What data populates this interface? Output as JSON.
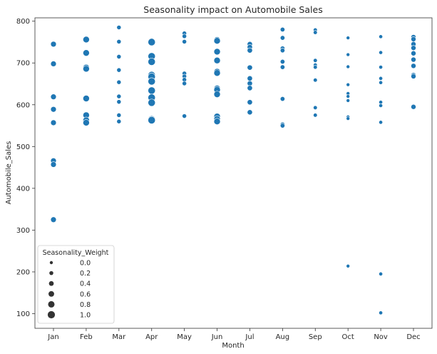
{
  "chart_data": {
    "type": "scatter",
    "title": "Seasonality impact on Automobile Sales",
    "xlabel": "Month",
    "ylabel": "Automobile_Sales",
    "categories": [
      "Jan",
      "Feb",
      "Mar",
      "Apr",
      "May",
      "Jun",
      "Jul",
      "Aug",
      "Sep",
      "Oct",
      "Nov",
      "Dec"
    ],
    "ylim": [
      65,
      808
    ],
    "yticks": [
      100,
      200,
      300,
      400,
      500,
      600,
      700,
      800
    ],
    "grid": false,
    "color": "#1f77b4",
    "legend": {
      "title": "Seasonality_Weight",
      "placement": "lower-left",
      "entries": [
        {
          "label": "0.0",
          "weight": 0.0
        },
        {
          "label": "0.2",
          "weight": 0.2
        },
        {
          "label": "0.4",
          "weight": 0.4
        },
        {
          "label": "0.6",
          "weight": 0.6
        },
        {
          "label": "0.8",
          "weight": 0.8
        },
        {
          "label": "1.0",
          "weight": 1.0
        }
      ]
    },
    "points": [
      {
        "x": "Jan",
        "y": 745,
        "weight": 0.6
      },
      {
        "x": "Jan",
        "y": 698,
        "weight": 0.6
      },
      {
        "x": "Jan",
        "y": 619,
        "weight": 0.6
      },
      {
        "x": "Jan",
        "y": 589,
        "weight": 0.6
      },
      {
        "x": "Jan",
        "y": 557,
        "weight": 0.6
      },
      {
        "x": "Jan",
        "y": 466,
        "weight": 0.6
      },
      {
        "x": "Jan",
        "y": 457,
        "weight": 0.6
      },
      {
        "x": "Jan",
        "y": 325,
        "weight": 0.6
      },
      {
        "x": "Feb",
        "y": 756,
        "weight": 0.8
      },
      {
        "x": "Feb",
        "y": 724,
        "weight": 0.8
      },
      {
        "x": "Feb",
        "y": 689,
        "weight": 0.8
      },
      {
        "x": "Feb",
        "y": 686,
        "weight": 0.8
      },
      {
        "x": "Feb",
        "y": 615,
        "weight": 0.8
      },
      {
        "x": "Feb",
        "y": 575,
        "weight": 0.8
      },
      {
        "x": "Feb",
        "y": 563,
        "weight": 0.8
      },
      {
        "x": "Feb",
        "y": 557,
        "weight": 0.8
      },
      {
        "x": "Mar",
        "y": 785,
        "weight": 0.3
      },
      {
        "x": "Mar",
        "y": 751,
        "weight": 0.3
      },
      {
        "x": "Mar",
        "y": 715,
        "weight": 0.3
      },
      {
        "x": "Mar",
        "y": 683,
        "weight": 0.3
      },
      {
        "x": "Mar",
        "y": 654,
        "weight": 0.3
      },
      {
        "x": "Mar",
        "y": 620,
        "weight": 0.3
      },
      {
        "x": "Mar",
        "y": 607,
        "weight": 0.3
      },
      {
        "x": "Mar",
        "y": 575,
        "weight": 0.3
      },
      {
        "x": "Mar",
        "y": 560,
        "weight": 0.3
      },
      {
        "x": "Apr",
        "y": 751,
        "weight": 1.0
      },
      {
        "x": "Apr",
        "y": 750,
        "weight": 1.0
      },
      {
        "x": "Apr",
        "y": 716,
        "weight": 1.0
      },
      {
        "x": "Apr",
        "y": 703,
        "weight": 1.0
      },
      {
        "x": "Apr",
        "y": 671,
        "weight": 1.0
      },
      {
        "x": "Apr",
        "y": 667,
        "weight": 1.0
      },
      {
        "x": "Apr",
        "y": 656,
        "weight": 1.0
      },
      {
        "x": "Apr",
        "y": 634,
        "weight": 1.0
      },
      {
        "x": "Apr",
        "y": 617,
        "weight": 1.0
      },
      {
        "x": "Apr",
        "y": 605,
        "weight": 1.0
      },
      {
        "x": "Apr",
        "y": 565,
        "weight": 1.0
      },
      {
        "x": "Apr",
        "y": 563,
        "weight": 1.0
      },
      {
        "x": "May",
        "y": 771,
        "weight": 0.3
      },
      {
        "x": "May",
        "y": 764,
        "weight": 0.3
      },
      {
        "x": "May",
        "y": 751,
        "weight": 0.3
      },
      {
        "x": "May",
        "y": 675,
        "weight": 0.3
      },
      {
        "x": "May",
        "y": 668,
        "weight": 0.3
      },
      {
        "x": "May",
        "y": 660,
        "weight": 0.3
      },
      {
        "x": "May",
        "y": 651,
        "weight": 0.3
      },
      {
        "x": "May",
        "y": 573,
        "weight": 0.3
      },
      {
        "x": "Jun",
        "y": 755,
        "weight": 0.8
      },
      {
        "x": "Jun",
        "y": 753,
        "weight": 0.8
      },
      {
        "x": "Jun",
        "y": 727,
        "weight": 0.8
      },
      {
        "x": "Jun",
        "y": 706,
        "weight": 0.8
      },
      {
        "x": "Jun",
        "y": 679,
        "weight": 0.8
      },
      {
        "x": "Jun",
        "y": 676,
        "weight": 0.8
      },
      {
        "x": "Jun",
        "y": 639,
        "weight": 0.8
      },
      {
        "x": "Jun",
        "y": 636,
        "weight": 0.8
      },
      {
        "x": "Jun",
        "y": 625,
        "weight": 0.8
      },
      {
        "x": "Jun",
        "y": 572,
        "weight": 0.8
      },
      {
        "x": "Jun",
        "y": 566,
        "weight": 0.8
      },
      {
        "x": "Jun",
        "y": 560,
        "weight": 0.8
      },
      {
        "x": "Jul",
        "y": 745,
        "weight": 0.5
      },
      {
        "x": "Jul",
        "y": 738,
        "weight": 0.5
      },
      {
        "x": "Jul",
        "y": 730,
        "weight": 0.5
      },
      {
        "x": "Jul",
        "y": 689,
        "weight": 0.5
      },
      {
        "x": "Jul",
        "y": 663,
        "weight": 0.5
      },
      {
        "x": "Jul",
        "y": 651,
        "weight": 0.5
      },
      {
        "x": "Jul",
        "y": 640,
        "weight": 0.5
      },
      {
        "x": "Jul",
        "y": 606,
        "weight": 0.5
      },
      {
        "x": "Jul",
        "y": 582,
        "weight": 0.5
      },
      {
        "x": "Aug",
        "y": 780,
        "weight": 0.35
      },
      {
        "x": "Aug",
        "y": 760,
        "weight": 0.35
      },
      {
        "x": "Aug",
        "y": 735,
        "weight": 0.35
      },
      {
        "x": "Aug",
        "y": 730,
        "weight": 0.35
      },
      {
        "x": "Aug",
        "y": 703,
        "weight": 0.35
      },
      {
        "x": "Aug",
        "y": 690,
        "weight": 0.35
      },
      {
        "x": "Aug",
        "y": 614,
        "weight": 0.35
      },
      {
        "x": "Aug",
        "y": 553,
        "weight": 0.35
      },
      {
        "x": "Aug",
        "y": 550,
        "weight": 0.35
      },
      {
        "x": "Sep",
        "y": 779,
        "weight": 0.2
      },
      {
        "x": "Sep",
        "y": 773,
        "weight": 0.2
      },
      {
        "x": "Sep",
        "y": 706,
        "weight": 0.2
      },
      {
        "x": "Sep",
        "y": 695,
        "weight": 0.2
      },
      {
        "x": "Sep",
        "y": 690,
        "weight": 0.2
      },
      {
        "x": "Sep",
        "y": 659,
        "weight": 0.2
      },
      {
        "x": "Sep",
        "y": 593,
        "weight": 0.2
      },
      {
        "x": "Sep",
        "y": 575,
        "weight": 0.2
      },
      {
        "x": "Oct",
        "y": 760,
        "weight": 0.1
      },
      {
        "x": "Oct",
        "y": 720,
        "weight": 0.1
      },
      {
        "x": "Oct",
        "y": 691,
        "weight": 0.1
      },
      {
        "x": "Oct",
        "y": 648,
        "weight": 0.1
      },
      {
        "x": "Oct",
        "y": 627,
        "weight": 0.1
      },
      {
        "x": "Oct",
        "y": 620,
        "weight": 0.1
      },
      {
        "x": "Oct",
        "y": 610,
        "weight": 0.1
      },
      {
        "x": "Oct",
        "y": 571,
        "weight": 0.1
      },
      {
        "x": "Oct",
        "y": 567,
        "weight": 0.1
      },
      {
        "x": "Oct",
        "y": 214,
        "weight": 0.1
      },
      {
        "x": "Nov",
        "y": 763,
        "weight": 0.15
      },
      {
        "x": "Nov",
        "y": 725,
        "weight": 0.15
      },
      {
        "x": "Nov",
        "y": 690,
        "weight": 0.15
      },
      {
        "x": "Nov",
        "y": 663,
        "weight": 0.15
      },
      {
        "x": "Nov",
        "y": 653,
        "weight": 0.15
      },
      {
        "x": "Nov",
        "y": 606,
        "weight": 0.15
      },
      {
        "x": "Nov",
        "y": 598,
        "weight": 0.15
      },
      {
        "x": "Nov",
        "y": 558,
        "weight": 0.15
      },
      {
        "x": "Nov",
        "y": 195,
        "weight": 0.15
      },
      {
        "x": "Nov",
        "y": 102,
        "weight": 0.15
      },
      {
        "x": "Dec",
        "y": 762,
        "weight": 0.45
      },
      {
        "x": "Dec",
        "y": 757,
        "weight": 0.45
      },
      {
        "x": "Dec",
        "y": 745,
        "weight": 0.45
      },
      {
        "x": "Dec",
        "y": 736,
        "weight": 0.45
      },
      {
        "x": "Dec",
        "y": 723,
        "weight": 0.45
      },
      {
        "x": "Dec",
        "y": 708,
        "weight": 0.45
      },
      {
        "x": "Dec",
        "y": 693,
        "weight": 0.45
      },
      {
        "x": "Dec",
        "y": 671,
        "weight": 0.45
      },
      {
        "x": "Dec",
        "y": 668,
        "weight": 0.45
      },
      {
        "x": "Dec",
        "y": 595,
        "weight": 0.45
      }
    ]
  }
}
